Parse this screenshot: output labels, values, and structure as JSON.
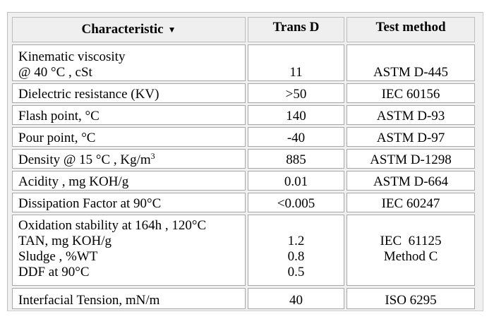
{
  "headers": {
    "characteristic": "Characteristic",
    "trans_d": "Trans D",
    "test_method": "Test method"
  },
  "sort_icon": "sort-down-arrow-icon",
  "rows": [
    {
      "label_lines": [
        "Kinematic viscosity",
        "@ 40 °C , cSt"
      ],
      "value": "11",
      "method": "ASTM D-445"
    },
    {
      "label": "Dielectric resistance  (KV)",
      "value": ">50",
      "method": "IEC 60156"
    },
    {
      "label": "Flash point, °C",
      "value": "140",
      "method": "ASTM D-93"
    },
    {
      "label": "Pour point, °C",
      "value": "-40",
      "method": "ASTM D-97"
    },
    {
      "label": "Density @ 15 °C , Kg/m",
      "label_sup": "3",
      "value": "885",
      "method": "ASTM D-1298"
    },
    {
      "label": "Acidity , mg KOH/g",
      "value": "0.01",
      "method": "ASTM D-664"
    },
    {
      "label": "Dissipation Factor at 90°C",
      "value": "<0.005",
      "method": "IEC 60247"
    },
    {
      "label_lines": [
        "Oxidation stability at 164h , 120°C",
        "TAN, mg KOH/g",
        "Sludge ,  %WT",
        "DDF at 90°C"
      ],
      "value_lines": [
        "1.2",
        "0.8",
        "0.5"
      ],
      "method_lines": [
        "IEC  61125",
        "Method C"
      ]
    },
    {
      "label": "Interfacial Tension, mN/m",
      "value": "40",
      "method": "ISO 6295"
    }
  ]
}
